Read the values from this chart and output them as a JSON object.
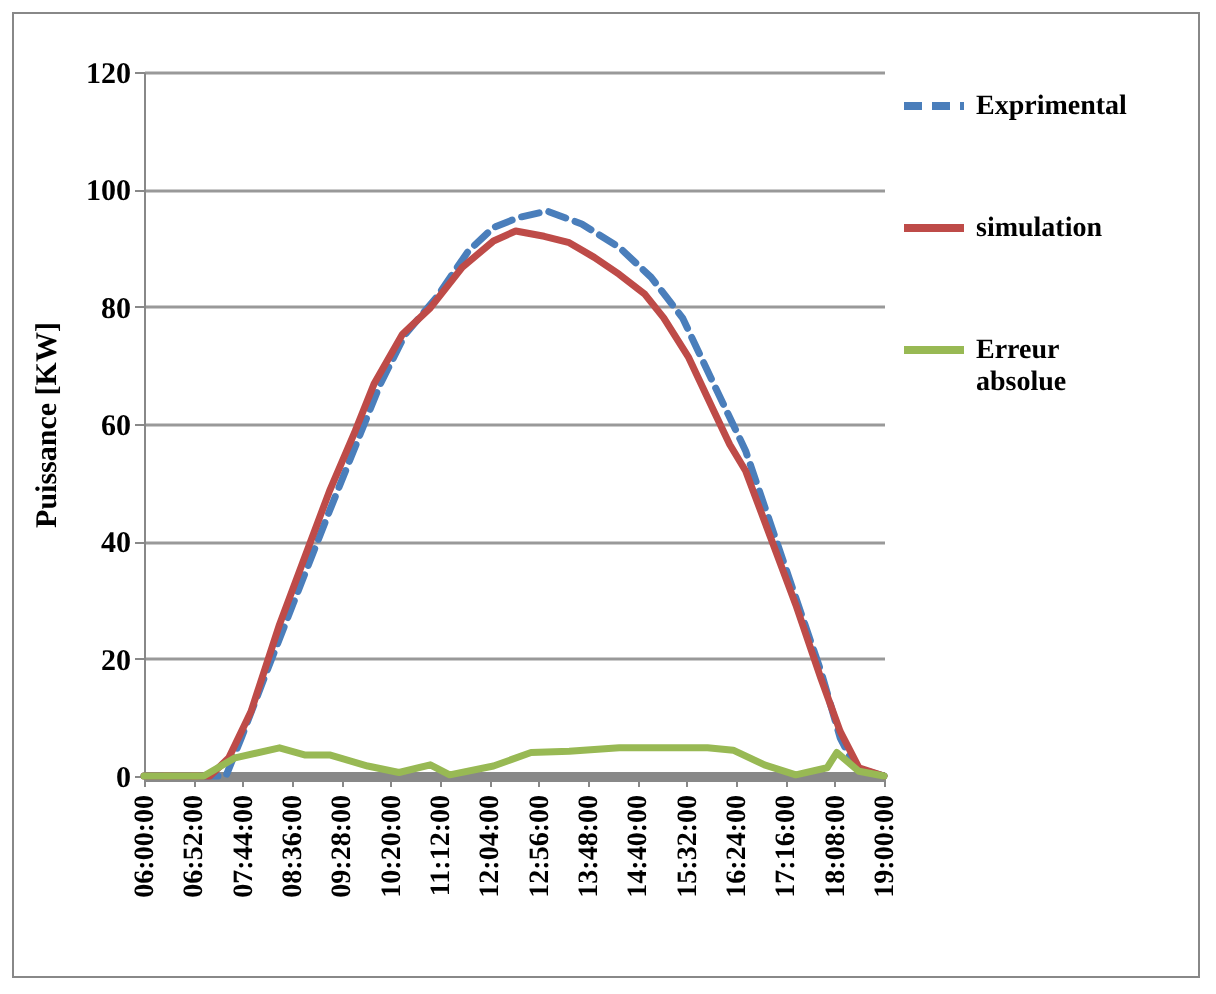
{
  "chart_data": {
    "type": "line",
    "ylabel": "Puissance [KW]",
    "xlim": [
      6,
      19
    ],
    "ylim": [
      0,
      120
    ],
    "yticks": [
      0,
      20,
      40,
      60,
      80,
      100,
      120
    ],
    "xticks": [
      {
        "value": 6,
        "label": "06:00:00"
      },
      {
        "value": 6.8667,
        "label": "06:52:00"
      },
      {
        "value": 7.7333,
        "label": "07:44:00"
      },
      {
        "value": 8.6,
        "label": "08:36:00"
      },
      {
        "value": 9.4667,
        "label": "09:28:00"
      },
      {
        "value": 10.3333,
        "label": "10:20:00"
      },
      {
        "value": 11.2,
        "label": "11:12:00"
      },
      {
        "value": 12.0667,
        "label": "12:04:00"
      },
      {
        "value": 12.9333,
        "label": "12:56:00"
      },
      {
        "value": 13.8,
        "label": "13:48:00"
      },
      {
        "value": 14.6667,
        "label": "14:40:00"
      },
      {
        "value": 15.5333,
        "label": "15:32:00"
      },
      {
        "value": 16.4,
        "label": "16:24:00"
      },
      {
        "value": 17.2667,
        "label": "17:16:00"
      },
      {
        "value": 18.1333,
        "label": "18:08:00"
      },
      {
        "value": 19,
        "label": "19:00:00"
      }
    ],
    "grid": "y",
    "legend": "right",
    "series": [
      {
        "name": "Exprimental",
        "color": "#4a7ebb",
        "line_style": "dashed",
        "x": [
          6,
          7.44,
          7.71,
          8.16,
          8.71,
          9.26,
          9.82,
          10.15,
          10.59,
          11.14,
          11.7,
          12.14,
          12.58,
          13.08,
          13.69,
          14.35,
          14.91,
          15.46,
          16.01,
          16.57,
          17.01,
          17.45,
          17.89,
          18.23,
          18.5,
          19
        ],
        "values": [
          0,
          0,
          6.5,
          17.9,
          31.6,
          45.2,
          58.8,
          66.8,
          75.3,
          81.6,
          89.5,
          93.5,
          95.2,
          96.3,
          94.1,
          90.1,
          85,
          78.1,
          66.8,
          55.4,
          42.9,
          30.4,
          17.9,
          6.5,
          1.4,
          0
        ]
      },
      {
        "name": "simulation",
        "color": "#be4b48",
        "line_style": "solid",
        "x": [
          6,
          7.16,
          7.49,
          7.88,
          8.38,
          8.82,
          9.26,
          9.71,
          10.04,
          10.54,
          11.03,
          11.59,
          12.14,
          12.53,
          13.03,
          13.47,
          13.91,
          14.35,
          14.8,
          15.13,
          15.57,
          16.01,
          16.29,
          16.57,
          17.01,
          17.45,
          17.89,
          18.23,
          18.56,
          19
        ],
        "values": [
          0,
          0,
          3.1,
          11,
          25.8,
          37.2,
          48.6,
          58.8,
          66.8,
          75.3,
          79.8,
          86.7,
          91.2,
          92.9,
          92,
          90.9,
          88.4,
          85.5,
          82.1,
          78.1,
          71.3,
          62.2,
          56.5,
          52,
          40.6,
          29.2,
          16.7,
          7.6,
          1.4,
          0
        ]
      },
      {
        "name": "Erreur absolue",
        "color": "#98b954",
        "line_style": "solid",
        "x": [
          6,
          7.05,
          7.6,
          8.38,
          8.82,
          9.26,
          9.93,
          10.48,
          11.03,
          11.37,
          12.14,
          12.8,
          13.47,
          14.35,
          15.13,
          15.9,
          16.35,
          16.9,
          17.45,
          18,
          18.17,
          18.56,
          19
        ],
        "values": [
          0,
          0,
          3.1,
          4.8,
          3.6,
          3.6,
          1.7,
          0.6,
          1.9,
          0.2,
          1.7,
          4,
          4.2,
          4.8,
          4.8,
          4.8,
          4.4,
          1.9,
          0.2,
          1.4,
          4,
          0.8,
          0
        ]
      }
    ]
  }
}
